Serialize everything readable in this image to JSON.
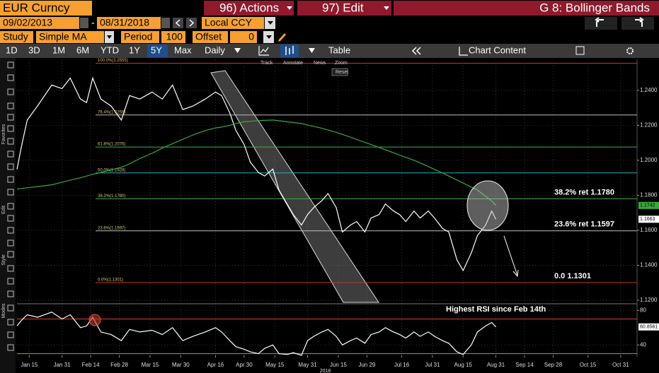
{
  "ui": {
    "security": "EUR Curncy",
    "actions": "96) Actions",
    "edit": "97) Edit",
    "page_title": "G 8: Bollinger Bands",
    "start_date": "09/02/2013",
    "dash": "-",
    "end_date": "08/31/2018",
    "currency": "Local CCY",
    "study_label": "Study",
    "study": "Simple MA",
    "period_label": "Period",
    "period": "100",
    "offset_label": "Offset",
    "offset": "0",
    "ranges": [
      "1D",
      "3D",
      "1M",
      "6M",
      "YTD",
      "1Y",
      "5Y",
      "Max"
    ],
    "selected_range": 6,
    "frequency": "Daily",
    "table": "Table",
    "chart_content": "Chart Content",
    "chart_tools": [
      "Track",
      "Annotate",
      "News",
      "Zoom"
    ],
    "reset": "Reset",
    "sidebar": [
      "Favorites",
      "Edit",
      "Style",
      "Modes"
    ]
  },
  "chart_data": [
    {
      "type": "line",
      "xlim": [
        "2018-01-09",
        "2018-11-08"
      ],
      "x": [
        "2018-01-09",
        "2018-01-11",
        "2018-01-14",
        "2018-01-19",
        "2018-01-26",
        "2018-01-31",
        "2018-02-04",
        "2018-02-09",
        "2018-02-12",
        "2018-02-15",
        "2018-02-19",
        "2018-02-24",
        "2018-03-01",
        "2018-03-05",
        "2018-03-10",
        "2018-03-16",
        "2018-03-21",
        "2018-03-26",
        "2018-03-31",
        "2018-04-05",
        "2018-04-11",
        "2018-04-16",
        "2018-04-19",
        "2018-04-23",
        "2018-04-26",
        "2018-04-30",
        "2018-05-03",
        "2018-05-07",
        "2018-05-10",
        "2018-05-14",
        "2018-05-17",
        "2018-05-21",
        "2018-05-24",
        "2018-05-28",
        "2018-05-31",
        "2018-06-03",
        "2018-06-07",
        "2018-06-10",
        "2018-06-14",
        "2018-06-17",
        "2018-06-21",
        "2018-06-24",
        "2018-06-28",
        "2018-07-01",
        "2018-07-05",
        "2018-07-08",
        "2018-07-12",
        "2018-07-15",
        "2018-07-18",
        "2018-07-22",
        "2018-07-25",
        "2018-07-29",
        "2018-08-01",
        "2018-08-05",
        "2018-08-08",
        "2018-08-12",
        "2018-08-15",
        "2018-08-19",
        "2018-08-22",
        "2018-08-26",
        "2018-08-29",
        "2018-08-31"
      ],
      "series": [
        {
          "color": "#ffffff",
          "values": [
            1.1948,
            1.207,
            1.223,
            1.231,
            1.243,
            1.241,
            1.247,
            1.235,
            1.233,
            1.247,
            1.235,
            1.231,
            1.223,
            1.237,
            1.235,
            1.239,
            1.235,
            1.243,
            1.229,
            1.231,
            1.235,
            1.239,
            1.237,
            1.227,
            1.217,
            1.209,
            1.199,
            1.193,
            1.191,
            1.195,
            1.183,
            1.175,
            1.169,
            1.163,
            1.169,
            1.173,
            1.177,
            1.181,
            1.173,
            1.159,
            1.163,
            1.165,
            1.159,
            1.167,
            1.169,
            1.175,
            1.171,
            1.169,
            1.165,
            1.171,
            1.167,
            1.171,
            1.167,
            1.161,
            1.159,
            1.143,
            1.137,
            1.147,
            1.157,
            1.163,
            1.171,
            1.1663
          ]
        },
        {
          "color": "#3aa83a",
          "values": [
            1.1836,
            1.1839,
            1.1843,
            1.185,
            1.186,
            1.1875,
            1.1887,
            1.19,
            1.191,
            1.192,
            1.193,
            1.1945,
            1.196,
            1.198,
            1.201,
            1.204,
            1.207,
            1.2095,
            1.212,
            1.2145,
            1.217,
            1.2185,
            1.219,
            1.22,
            1.221,
            1.222,
            1.2223,
            1.2226,
            1.2228,
            1.223,
            1.2226,
            1.222,
            1.2216,
            1.221,
            1.2202,
            1.2194,
            1.2183,
            1.2173,
            1.216,
            1.2148,
            1.2132,
            1.2119,
            1.2102,
            1.209,
            1.2073,
            1.206,
            1.2043,
            1.203,
            1.2017,
            1.2,
            1.1985,
            1.1964,
            1.1948,
            1.1927,
            1.191,
            1.1887,
            1.187,
            1.1847,
            1.183,
            1.1794,
            1.1768,
            1.1742
          ]
        }
      ],
      "ylim": [
        1.1188,
        1.2573
      ],
      "yticks": [
        {
          "value": 1.12,
          "label": "1.1200"
        },
        {
          "value": 1.14,
          "label": "1.1400"
        },
        {
          "value": 1.16,
          "label": "1.1600"
        },
        {
          "value": 1.18,
          "label": "1.1800"
        },
        {
          "value": 1.2,
          "label": "1.2000"
        },
        {
          "value": 1.22,
          "label": "1.2200"
        },
        {
          "value": 1.24,
          "label": "1.2400"
        }
      ],
      "levels": [
        {
          "label": "100.0%(1.2555)",
          "value": 1.2555,
          "color": "#c0392b"
        },
        {
          "label": "76.4%(1.2259)",
          "value": 1.2259,
          "color": "#bbbbbb"
        },
        {
          "label": "61.8%(1.2076)",
          "value": 1.2076,
          "color": "#3cb043"
        },
        {
          "label": "50.0%(1.1928)",
          "value": 1.1928,
          "color": "#2ab0c0"
        },
        {
          "label": "38.2%(1.1780)",
          "value": 1.178,
          "color": "#3cb043",
          "note": "38.2% ret 1.1780"
        },
        {
          "label": "23.6%(1.1597)",
          "value": 1.1597,
          "color": "#bbbbbb",
          "note": "23.6% ret 1.1597"
        },
        {
          "label": "0.0%(1.1301)",
          "value": 1.1301,
          "color": "#c0392b",
          "note": "0.0 1.1301"
        }
      ]
    },
    {
      "type": "line",
      "title": "Highest RSI since Feb 14th",
      "xlim": [
        "2018-01-09",
        "2018-11-08"
      ],
      "x": [
        "2018-01-09",
        "2018-01-11",
        "2018-01-14",
        "2018-01-19",
        "2018-01-26",
        "2018-01-31",
        "2018-02-04",
        "2018-02-09",
        "2018-02-12",
        "2018-02-15",
        "2018-02-19",
        "2018-02-24",
        "2018-03-01",
        "2018-03-05",
        "2018-03-10",
        "2018-03-16",
        "2018-03-21",
        "2018-03-26",
        "2018-03-31",
        "2018-04-05",
        "2018-04-11",
        "2018-04-16",
        "2018-04-19",
        "2018-04-23",
        "2018-04-26",
        "2018-04-30",
        "2018-05-03",
        "2018-05-07",
        "2018-05-10",
        "2018-05-14",
        "2018-05-17",
        "2018-05-21",
        "2018-05-24",
        "2018-05-28",
        "2018-05-31",
        "2018-06-03",
        "2018-06-07",
        "2018-06-10",
        "2018-06-14",
        "2018-06-17",
        "2018-06-21",
        "2018-06-24",
        "2018-06-28",
        "2018-07-01",
        "2018-07-05",
        "2018-07-08",
        "2018-07-12",
        "2018-07-15",
        "2018-07-18",
        "2018-07-22",
        "2018-07-25",
        "2018-07-29",
        "2018-08-01",
        "2018-08-05",
        "2018-08-08",
        "2018-08-12",
        "2018-08-15",
        "2018-08-19",
        "2018-08-22",
        "2018-08-26",
        "2018-08-29",
        "2018-08-31"
      ],
      "series": [
        {
          "color": "#ffffff",
          "values": [
            62,
            68,
            75,
            72,
            78,
            70,
            75,
            60,
            62,
            72,
            55,
            52,
            45,
            58,
            55,
            57,
            52,
            60,
            45,
            50,
            55,
            60,
            55,
            45,
            38,
            35,
            32,
            30,
            36,
            40,
            30,
            29,
            31,
            28,
            45,
            50,
            55,
            58,
            50,
            40,
            45,
            48,
            42,
            52,
            55,
            60,
            55,
            52,
            48,
            55,
            50,
            55,
            50,
            45,
            42,
            32,
            29,
            40,
            55,
            62,
            66,
            60.8561
          ]
        }
      ],
      "ylim": [
        28,
        86
      ],
      "yticks": [
        40,
        80
      ],
      "hlines": [
        {
          "value": 70,
          "color": "#c0392b"
        },
        {
          "value": 30,
          "color": "#3cb043"
        }
      ],
      "xticks": [
        {
          "value": "2018-01-15",
          "label": "Jan 15"
        },
        {
          "value": "2018-01-31",
          "label": "Jan 31"
        },
        {
          "value": "2018-02-14",
          "label": "Feb 14"
        },
        {
          "value": "2018-02-28",
          "label": "Feb 28"
        },
        {
          "value": "2018-03-15",
          "label": "Mar 15"
        },
        {
          "value": "2018-03-30",
          "label": "Mar 30"
        },
        {
          "value": "2018-04-16",
          "label": "Apr 16"
        },
        {
          "value": "2018-04-30",
          "label": "Apr 30"
        },
        {
          "value": "2018-05-15",
          "label": "May 15"
        },
        {
          "value": "2018-05-31",
          "label": "May 31"
        },
        {
          "value": "2018-06-15",
          "label": "Jun 15"
        },
        {
          "value": "2018-06-29",
          "label": "Jun 29"
        },
        {
          "value": "2018-07-16",
          "label": "Jul 16"
        },
        {
          "value": "2018-07-31",
          "label": "Jul 31"
        },
        {
          "value": "2018-08-15",
          "label": "Aug 15"
        },
        {
          "value": "2018-08-31",
          "label": "Aug 31"
        },
        {
          "value": "2018-09-14",
          "label": "Sep 14"
        },
        {
          "value": "2018-09-28",
          "label": "Sep 28"
        },
        {
          "value": "2018-10-15",
          "label": "Oct 15"
        },
        {
          "value": "2018-10-31",
          "label": "Oct 31"
        }
      ],
      "year": "2018"
    }
  ]
}
